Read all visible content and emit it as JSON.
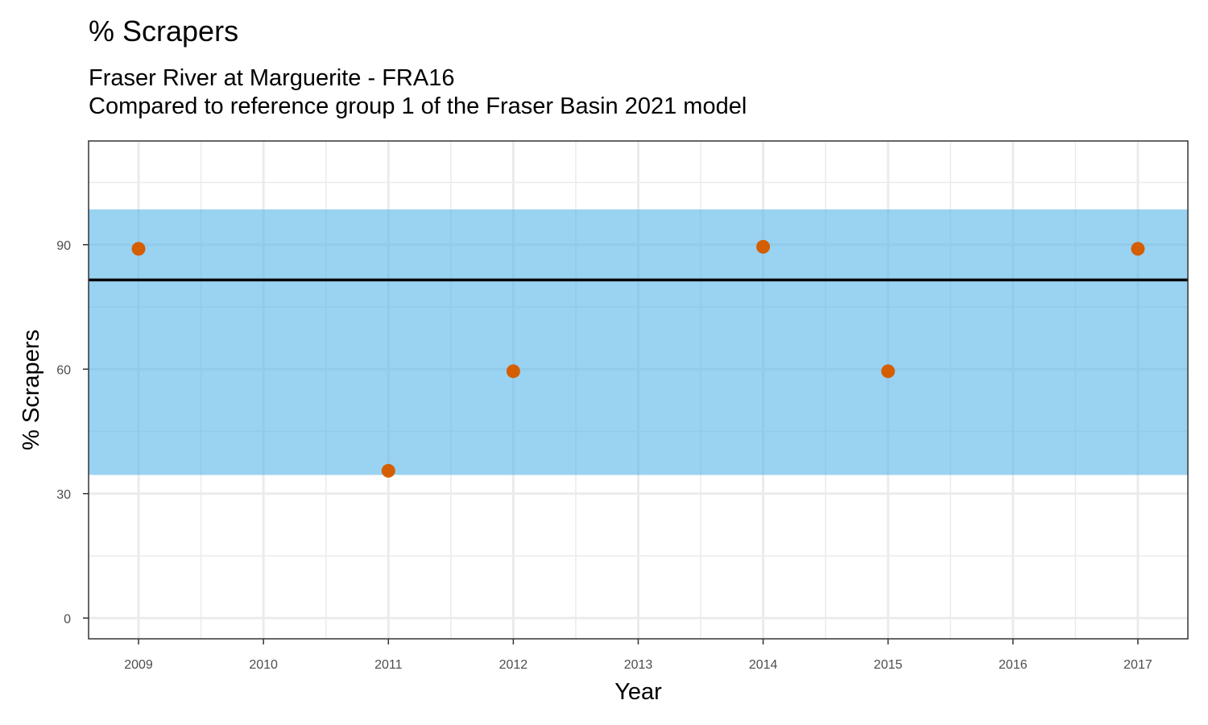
{
  "chart_data": {
    "type": "scatter",
    "title": "% Scrapers",
    "subtitle": [
      "Fraser River at Marguerite - FRA16",
      "Compared to reference group 1 of the Fraser Basin 2021 model"
    ],
    "xlabel": "Year",
    "ylabel": "% Scrapers",
    "x_ticks": [
      2009,
      2010,
      2011,
      2012,
      2013,
      2014,
      2015,
      2016,
      2017
    ],
    "y_ticks": [
      0,
      30,
      60,
      90
    ],
    "xlim": [
      2008.6,
      2017.4
    ],
    "ylim": [
      -5,
      115
    ],
    "grid": true,
    "points": [
      {
        "x": 2009,
        "y": 89.0
      },
      {
        "x": 2011,
        "y": 35.5
      },
      {
        "x": 2012,
        "y": 59.5
      },
      {
        "x": 2014,
        "y": 89.5
      },
      {
        "x": 2015,
        "y": 59.5
      },
      {
        "x": 2017,
        "y": 89.0
      }
    ],
    "reference_band": {
      "low": 34.5,
      "high": 98.5,
      "color": "#56B4E9"
    },
    "reference_line": {
      "y": 81.5,
      "color": "#000000"
    },
    "point_color": "#D55E00",
    "legend": "none"
  }
}
